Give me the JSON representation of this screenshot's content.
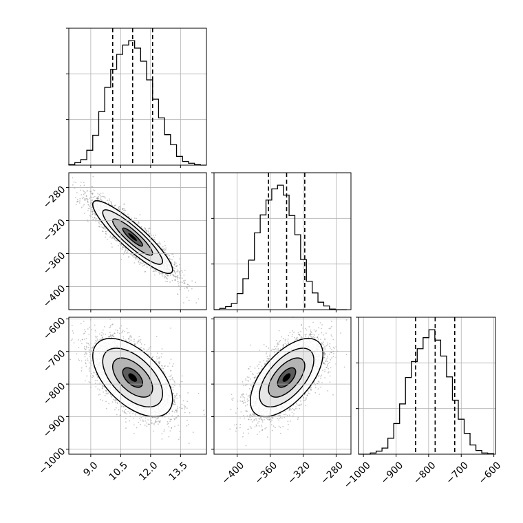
{
  "chart_data": {
    "type": "corner",
    "title": "",
    "parameters": [
      {
        "ticks": [
          9.0,
          10.5,
          12.0,
          13.5
        ],
        "tick_labels": [
          "9.0",
          "10.5",
          "12.0",
          "13.5"
        ],
        "range": [
          7.9,
          14.8
        ],
        "quantiles": [
          10.1,
          11.1,
          12.1
        ],
        "median": 11.1
      },
      {
        "ticks": [
          -400,
          -360,
          -320,
          -280
        ],
        "tick_labels": [
          "−400",
          "−360",
          "−320",
          "−280"
        ],
        "range": [
          -428,
          -262
        ],
        "quantiles": [
          -362,
          -340,
          -318
        ],
        "median": -340
      },
      {
        "ticks": [
          -1000,
          -900,
          -800,
          -700,
          -600
        ],
        "tick_labels": [
          "−1000",
          "−900",
          "−800",
          "−700",
          "−600"
        ],
        "range": [
          -1015,
          -595
        ],
        "quantiles": [
          -840,
          -780,
          -720
        ],
        "median": -780
      }
    ],
    "histograms": [
      {
        "param": 0,
        "bin_edges": [
          7.9,
          8.2,
          8.5,
          8.8,
          9.1,
          9.4,
          9.7,
          10.0,
          10.3,
          10.6,
          10.9,
          11.2,
          11.5,
          11.8,
          12.1,
          12.4,
          12.7,
          13.0,
          13.3,
          13.6,
          13.9,
          14.2,
          14.5,
          14.8
        ],
        "counts": [
          1,
          4,
          9,
          24,
          48,
          86,
          125,
          154,
          178,
          193,
          200,
          188,
          167,
          137,
          106,
          76,
          49,
          33,
          14,
          6,
          3,
          1,
          0
        ]
      },
      {
        "param": 1,
        "bin_edges": [
          -428,
          -421,
          -414,
          -407,
          -400,
          -393,
          -386,
          -379,
          -372,
          -365,
          -358,
          -351,
          -344,
          -337,
          -330,
          -323,
          -316,
          -309,
          -302,
          -295,
          -288,
          -281,
          -274,
          -267
        ],
        "counts": [
          0,
          2,
          5,
          10,
          26,
          50,
          80,
          124,
          153,
          177,
          195,
          201,
          185,
          152,
          121,
          81,
          46,
          27,
          12,
          6,
          1,
          0,
          0
        ]
      },
      {
        "param": 2,
        "bin_edges": [
          -1015,
          -997,
          -979,
          -961,
          -943,
          -925,
          -907,
          -889,
          -871,
          -853,
          -835,
          -817,
          -799,
          -781,
          -763,
          -745,
          -727,
          -709,
          -691,
          -673,
          -655,
          -637,
          -619,
          -601
        ],
        "counts": [
          0,
          0,
          2,
          5,
          10,
          26,
          50,
          82,
          125,
          151,
          172,
          190,
          203,
          186,
          160,
          126,
          88,
          57,
          34,
          15,
          6,
          2,
          1
        ]
      }
    ],
    "joint_2d": [
      {
        "x_param": 0,
        "y_param": 1,
        "mean": [
          11.1,
          -340
        ],
        "sd": [
          1.0,
          22
        ],
        "correlation": -0.9
      },
      {
        "x_param": 0,
        "y_param": 2,
        "mean": [
          11.1,
          -780
        ],
        "sd": [
          1.0,
          60
        ],
        "correlation": -0.55
      },
      {
        "x_param": 1,
        "y_param": 2,
        "mean": [
          -340,
          -780
        ],
        "sd": [
          22,
          60
        ],
        "correlation": 0.6
      }
    ],
    "xlabel": "",
    "ylabel": "",
    "grid": true,
    "legend": "none"
  }
}
